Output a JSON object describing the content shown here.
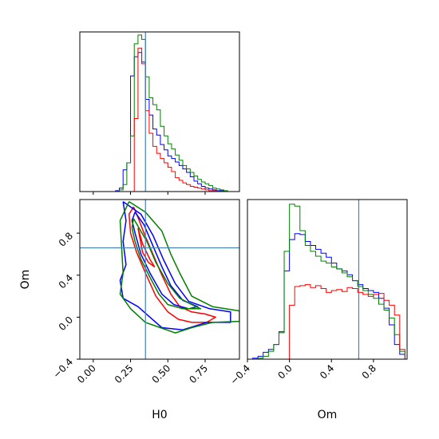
{
  "chart_data": [
    {
      "type": "histogram",
      "panel": "H0 marginal",
      "xlim": [
        -0.09,
        0.98
      ],
      "truth": 0.35,
      "bin_edges": [
        0.15,
        0.175,
        0.2,
        0.225,
        0.25,
        0.275,
        0.3,
        0.325,
        0.35,
        0.375,
        0.4,
        0.425,
        0.45,
        0.475,
        0.5,
        0.525,
        0.55,
        0.575,
        0.6,
        0.625,
        0.65,
        0.675,
        0.7,
        0.725,
        0.75,
        0.775,
        0.8,
        0.825,
        0.85,
        0.875,
        0.9,
        0.925,
        0.95
      ],
      "series": [
        {
          "color": "#0000ff",
          "values": [
            1,
            4,
            25,
            33,
            133,
            155,
            160,
            149,
            106,
            88,
            72,
            65,
            54,
            48,
            41,
            38,
            34,
            30,
            26,
            22,
            17,
            12,
            9,
            6,
            4,
            3,
            2,
            1,
            1,
            0,
            0,
            0
          ]
        },
        {
          "color": "#008000",
          "values": [
            0,
            2,
            8,
            33,
            64,
            170,
            180,
            175,
            132,
            108,
            100,
            94,
            75,
            64,
            55,
            49,
            42,
            36,
            30,
            26,
            22,
            18,
            14,
            11,
            9,
            7,
            4,
            3,
            2,
            1,
            0,
            0
          ]
        },
        {
          "color": "#ff0000",
          "values": [
            0,
            0,
            0,
            0,
            0,
            84,
            165,
            147,
            93,
            67,
            52,
            44,
            38,
            33,
            28,
            23,
            16,
            13,
            10,
            8,
            6,
            5,
            4,
            3,
            2,
            1,
            1,
            0,
            0,
            0,
            0,
            0
          ]
        }
      ]
    },
    {
      "type": "contour",
      "panel": "H0 vs Om joint",
      "xlabel": "H0",
      "ylabel": "Om",
      "xlim": [
        -0.09,
        0.98
      ],
      "ylim": [
        -0.4,
        1.12
      ],
      "xticks": [
        "0.00",
        "0.25",
        "0.50",
        "0.75"
      ],
      "xtick_values": [
        0,
        0.25,
        0.5,
        0.75
      ],
      "yticks": [
        "−0.4",
        "0.0",
        "0.4",
        "0.8"
      ],
      "ytick_values": [
        -0.4,
        0,
        0.4,
        0.8
      ],
      "truth": [
        0.35,
        0.66
      ],
      "series": [
        {
          "color": "#ff0000",
          "contours": [
            [
              [
                0.27,
                1.05
              ],
              [
                0.3,
                0.95
              ],
              [
                0.34,
                0.8
              ],
              [
                0.4,
                0.6
              ],
              [
                0.46,
                0.4
              ],
              [
                0.52,
                0.22
              ],
              [
                0.58,
                0.1
              ],
              [
                0.66,
                0.05
              ],
              [
                0.75,
                0.03
              ],
              [
                0.82,
                0.0
              ],
              [
                0.76,
                -0.05
              ],
              [
                0.66,
                -0.05
              ],
              [
                0.57,
                -0.02
              ],
              [
                0.5,
                0.05
              ],
              [
                0.42,
                0.2
              ],
              [
                0.35,
                0.42
              ],
              [
                0.29,
                0.62
              ],
              [
                0.25,
                0.8
              ],
              [
                0.24,
                0.98
              ],
              [
                0.27,
                1.05
              ]
            ],
            [
              [
                0.3,
                0.85
              ],
              [
                0.33,
                0.7
              ],
              [
                0.38,
                0.55
              ],
              [
                0.41,
                0.48
              ],
              [
                0.37,
                0.52
              ],
              [
                0.33,
                0.62
              ],
              [
                0.3,
                0.85
              ]
            ]
          ]
        },
        {
          "color": "#0000ff",
          "contours": [
            [
              [
                0.2,
                1.1
              ],
              [
                0.32,
                0.98
              ],
              [
                0.4,
                0.78
              ],
              [
                0.47,
                0.55
              ],
              [
                0.55,
                0.32
              ],
              [
                0.64,
                0.15
              ],
              [
                0.78,
                0.08
              ],
              [
                0.92,
                0.05
              ],
              [
                0.92,
                -0.05
              ],
              [
                0.76,
                -0.05
              ],
              [
                0.6,
                -0.12
              ],
              [
                0.46,
                -0.1
              ],
              [
                0.38,
                0.0
              ],
              [
                0.3,
                0.1
              ],
              [
                0.2,
                0.18
              ],
              [
                0.18,
                0.35
              ],
              [
                0.22,
                0.5
              ],
              [
                0.2,
                0.72
              ],
              [
                0.22,
                0.92
              ],
              [
                0.2,
                1.1
              ]
            ],
            [
              [
                0.28,
                1.0
              ],
              [
                0.34,
                0.88
              ],
              [
                0.4,
                0.68
              ],
              [
                0.46,
                0.48
              ],
              [
                0.52,
                0.3
              ],
              [
                0.6,
                0.16
              ],
              [
                0.7,
                0.1
              ],
              [
                0.64,
                0.08
              ],
              [
                0.54,
                0.12
              ],
              [
                0.46,
                0.22
              ],
              [
                0.38,
                0.42
              ],
              [
                0.32,
                0.6
              ],
              [
                0.28,
                0.8
              ],
              [
                0.26,
                0.92
              ],
              [
                0.28,
                1.0
              ]
            ]
          ]
        },
        {
          "color": "#008000",
          "contours": [
            [
              [
                0.24,
                1.1
              ],
              [
                0.35,
                1.0
              ],
              [
                0.46,
                0.82
              ],
              [
                0.52,
                0.6
              ],
              [
                0.58,
                0.42
              ],
              [
                0.66,
                0.2
              ],
              [
                0.8,
                0.1
              ],
              [
                0.98,
                0.06
              ],
              [
                0.98,
                -0.04
              ],
              [
                0.8,
                -0.05
              ],
              [
                0.66,
                -0.1
              ],
              [
                0.55,
                -0.15
              ],
              [
                0.45,
                -0.1
              ],
              [
                0.35,
                -0.05
              ],
              [
                0.25,
                0.08
              ],
              [
                0.18,
                0.22
              ],
              [
                0.2,
                0.42
              ],
              [
                0.19,
                0.68
              ],
              [
                0.18,
                0.92
              ],
              [
                0.24,
                1.1
              ]
            ],
            [
              [
                0.27,
                0.94
              ],
              [
                0.31,
                0.84
              ],
              [
                0.36,
                0.72
              ],
              [
                0.42,
                0.52
              ],
              [
                0.5,
                0.32
              ],
              [
                0.58,
                0.18
              ],
              [
                0.66,
                0.12
              ],
              [
                0.72,
                0.08
              ],
              [
                0.6,
                0.08
              ],
              [
                0.5,
                0.12
              ],
              [
                0.44,
                0.22
              ],
              [
                0.38,
                0.38
              ],
              [
                0.32,
                0.55
              ],
              [
                0.28,
                0.72
              ],
              [
                0.26,
                0.85
              ],
              [
                0.27,
                0.94
              ]
            ]
          ]
        }
      ]
    },
    {
      "type": "histogram",
      "panel": "Om marginal",
      "xlabel": "Om",
      "xlim": [
        -0.4,
        1.12
      ],
      "xticks": [
        "−0.4",
        "0.0",
        "0.4",
        "0.8"
      ],
      "xtick_values": [
        -0.4,
        0,
        0.4,
        0.8
      ],
      "truth": 0.66,
      "bin_edges": [
        -0.35,
        -0.3,
        -0.25,
        -0.2,
        -0.15,
        -0.1,
        -0.05,
        0.0,
        0.05,
        0.1,
        0.15,
        0.2,
        0.25,
        0.3,
        0.35,
        0.4,
        0.45,
        0.5,
        0.55,
        0.6,
        0.65,
        0.7,
        0.75,
        0.8,
        0.85,
        0.9,
        0.95,
        1.0,
        1.05,
        1.1
      ],
      "series": [
        {
          "color": "#0000ff",
          "values": [
            1,
            3,
            7,
            10,
            15,
            28,
            90,
            122,
            128,
            127,
            120,
            116,
            112,
            108,
            104,
            98,
            92,
            90,
            86,
            80,
            76,
            72,
            70,
            68,
            62,
            52,
            35,
            15,
            5
          ]
        },
        {
          "color": "#008000",
          "values": [
            0,
            1,
            3,
            8,
            15,
            27,
            110,
            158,
            156,
            131,
            116,
            110,
            105,
            100,
            98,
            94,
            92,
            88,
            84,
            80,
            74,
            70,
            66,
            62,
            56,
            50,
            42,
            25,
            8
          ]
        },
        {
          "color": "#ff0000",
          "values": [
            0,
            0,
            0,
            0,
            0,
            0,
            0,
            55,
            74,
            75,
            76,
            73,
            75,
            72,
            68,
            70,
            71,
            69,
            73,
            72,
            68,
            66,
            64,
            66,
            67,
            60,
            55,
            45,
            10
          ]
        }
      ]
    }
  ]
}
